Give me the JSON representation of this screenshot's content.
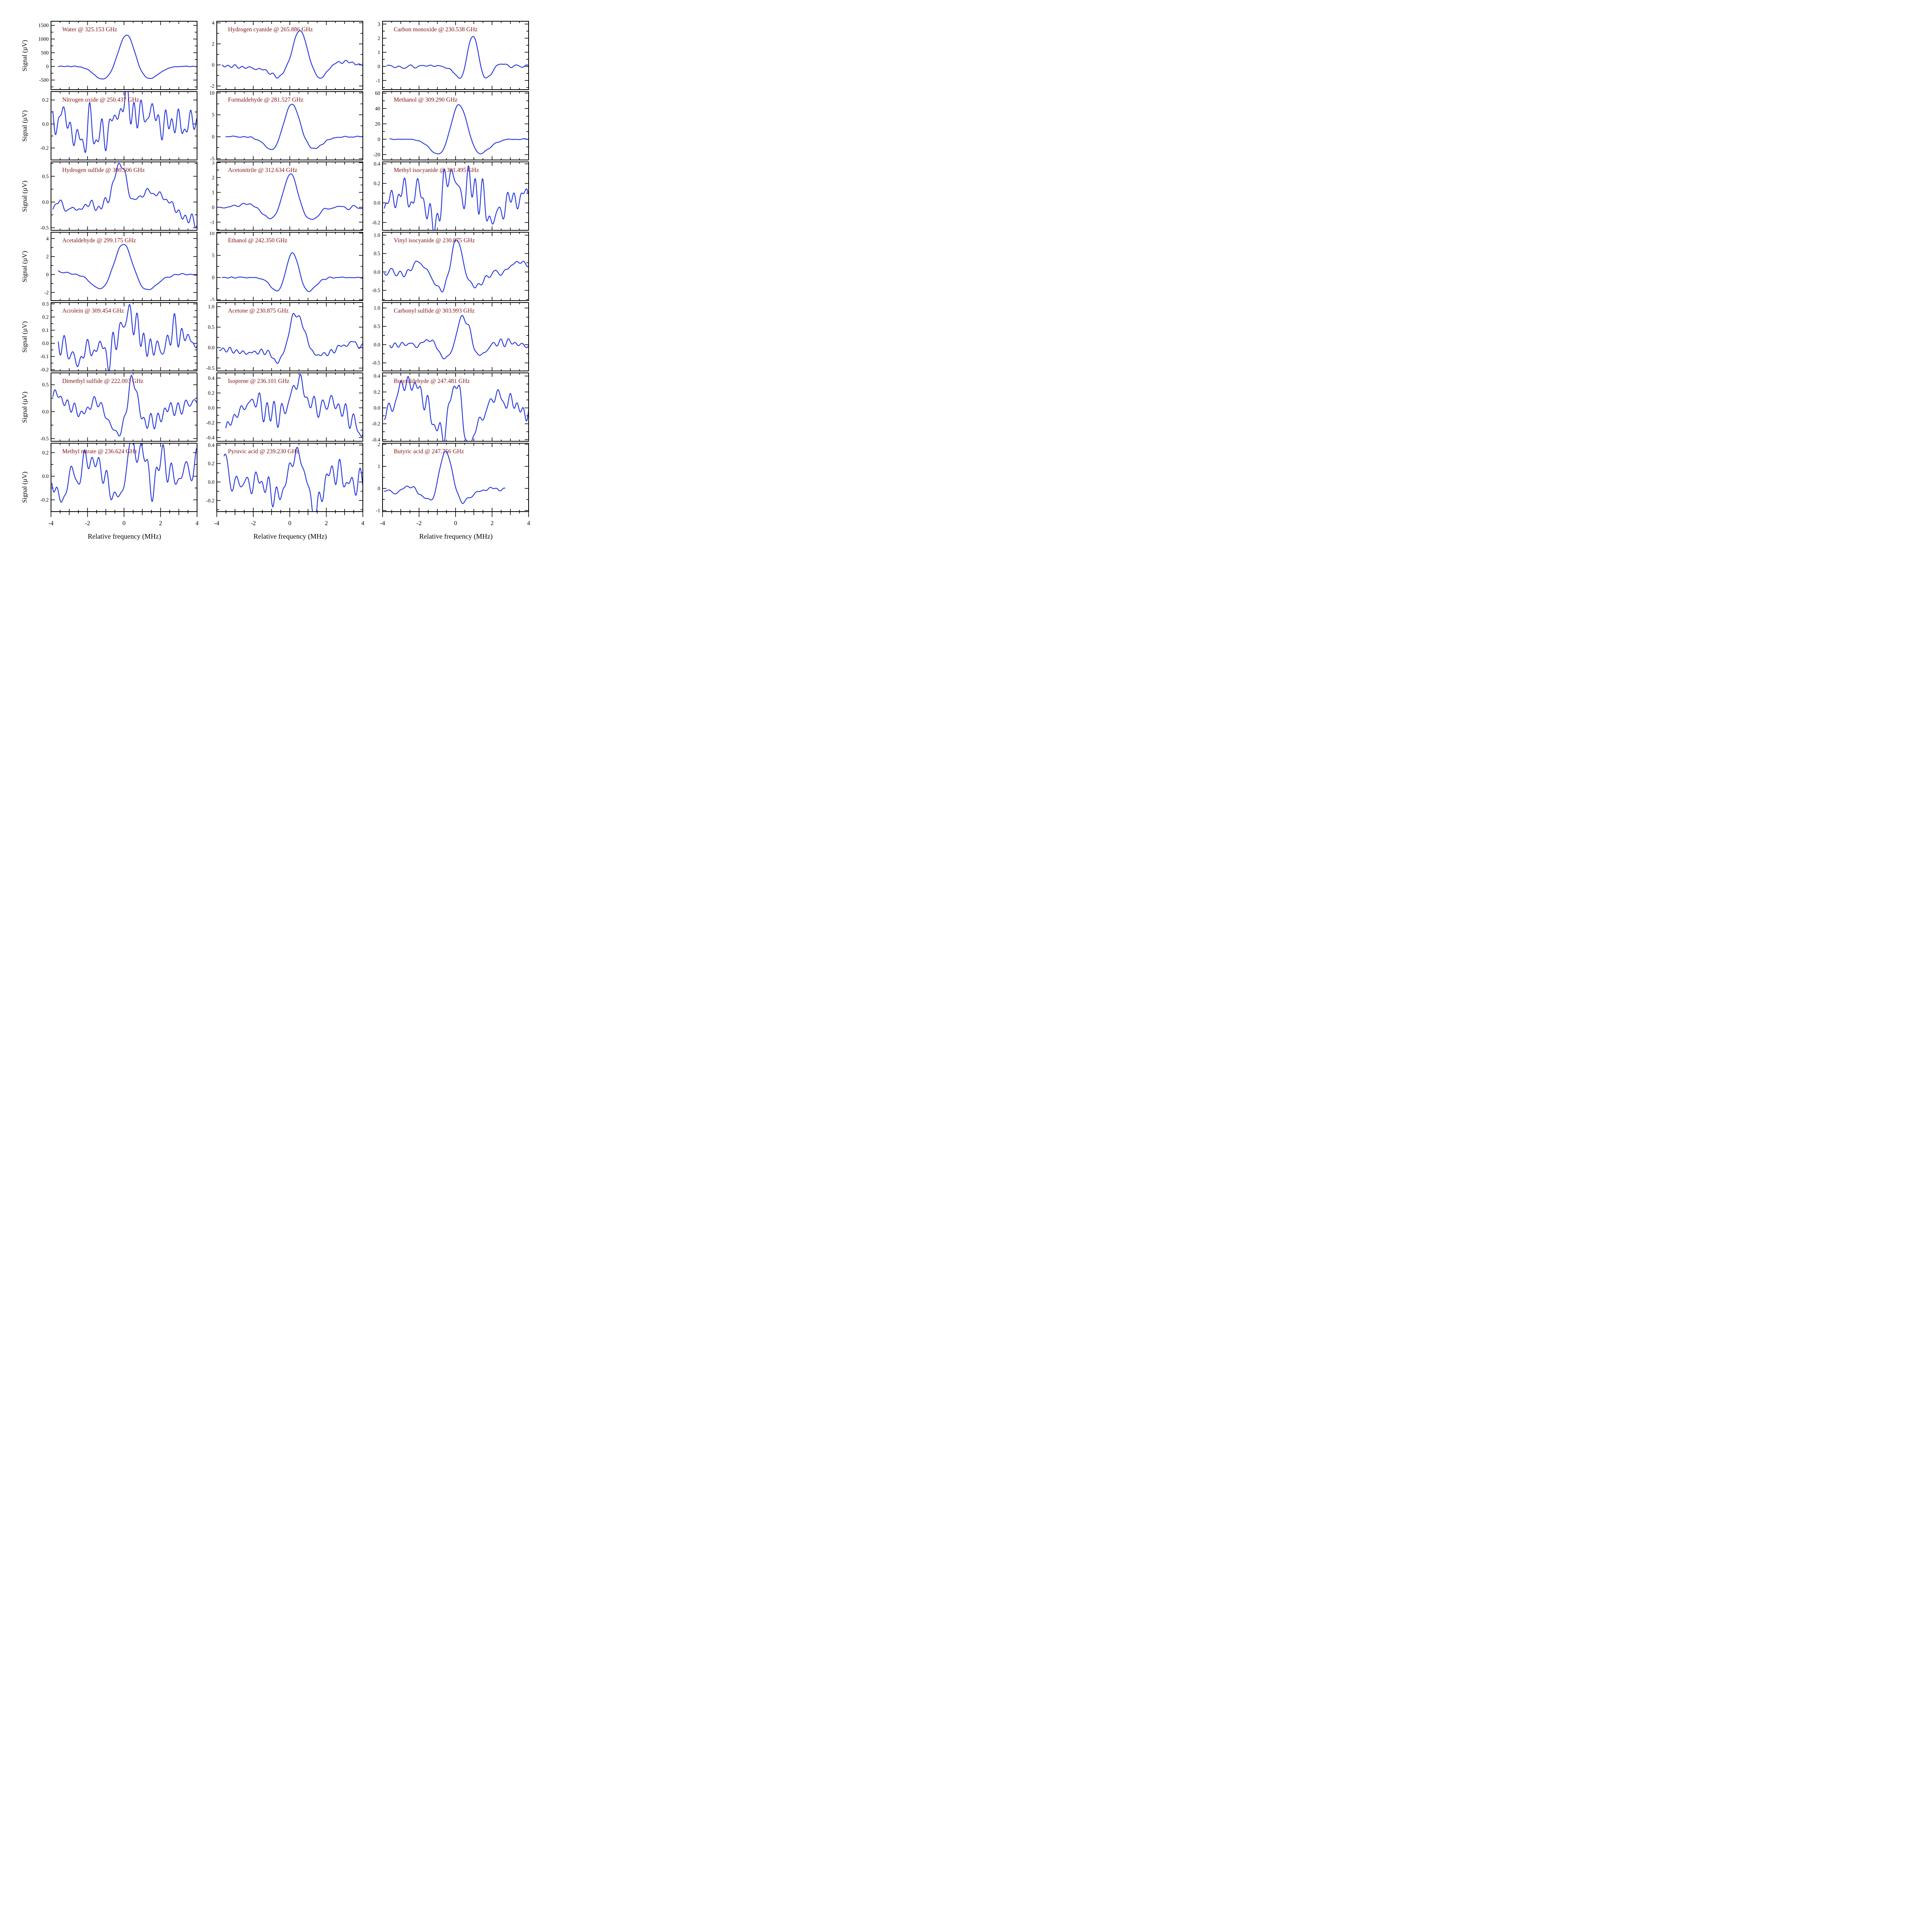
{
  "figure": {
    "xlabel": "Relative frequency (MHz)",
    "ylabel": "Signal (µV)",
    "xticks": [
      -4,
      -2,
      0,
      2,
      4
    ],
    "x_range": [
      -4,
      4
    ],
    "grid": "off",
    "legend": "none",
    "colors": {
      "trace": "#2233dd",
      "title": "#801111",
      "frame": "#000000",
      "background": "#ffffff"
    }
  },
  "chart_data": [
    {
      "type": "line",
      "molecule": "Water",
      "frequency_ghz": "325.153",
      "title": "Water @ 325.153 GHz",
      "ylim": [
        -850,
        1650
      ],
      "yticks": [
        1500,
        1000,
        500,
        0,
        -500
      ],
      "ytick_decimals": 0,
      "peak_value": 1210,
      "lobe_value": -475,
      "components": [
        [
          0.15,
          0.42,
          1210
        ],
        [
          -1.15,
          0.5,
          -475
        ],
        [
          1.35,
          0.55,
          -460
        ]
      ],
      "noise_rms": 6,
      "x_span": [
        -3.6,
        4.0
      ],
      "seed": 101
    },
    {
      "type": "line",
      "molecule": "Hydrogen cyanide",
      "frequency_ghz": "265.886",
      "title": "Hydrogen cyanide @ 265.886 GHz",
      "ylim": [
        -2.35,
        4.15
      ],
      "yticks": [
        4,
        2,
        0,
        -2
      ],
      "ytick_decimals": 0,
      "peak_value": 3.4,
      "lobe_value": -1.4,
      "components": [
        [
          0.55,
          0.42,
          3.45
        ],
        [
          -0.5,
          0.5,
          -1.05
        ],
        [
          1.55,
          0.42,
          -1.4
        ],
        [
          2.9,
          0.45,
          0.35
        ],
        [
          -1.8,
          1.1,
          -0.3
        ]
      ],
      "noise_rms": 0.07,
      "x_span": [
        -3.7,
        4.0
      ],
      "seed": 102
    },
    {
      "type": "line",
      "molecule": "Carbon monoxide",
      "frequency_ghz": "230.538",
      "title": "Carbon monoxide @ 230.538 GHz",
      "ylim": [
        -1.65,
        3.2
      ],
      "yticks": [
        3,
        2,
        1,
        0,
        -1
      ],
      "ytick_decimals": 0,
      "peak_value": 2.3,
      "lobe_value": -1.0,
      "components": [
        [
          0.95,
          0.3,
          2.35
        ],
        [
          0.3,
          0.3,
          -1.0
        ],
        [
          1.62,
          0.33,
          -1.05
        ],
        [
          2.3,
          0.3,
          0.28
        ]
      ],
      "noise_rms": 0.055,
      "x_span": [
        -3.75,
        4.0
      ],
      "seed": 103
    },
    {
      "type": "line",
      "molecule": "Nitrogen oxide",
      "frequency_ghz": "250.437",
      "title": "Nitrogen oxide @ 250.437 GHz",
      "ylim": [
        -0.3,
        0.27
      ],
      "yticks": [
        0.2,
        0.0,
        -0.2
      ],
      "ytick_decimals": 1,
      "peak_value": 0.23,
      "lobe_value": -0.17,
      "components": [
        [
          0.02,
          0.22,
          0.23
        ],
        [
          -3.3,
          0.2,
          0.15
        ],
        [
          -2.6,
          0.45,
          -0.13
        ],
        [
          1.1,
          0.5,
          0.1
        ],
        [
          -1.3,
          0.3,
          -0.1
        ]
      ],
      "noise_rms": 0.075,
      "x_span": [
        -3.9,
        4.05
      ],
      "seed": 104
    },
    {
      "type": "line",
      "molecule": "Formaldehyde",
      "frequency_ghz": "281.527",
      "title": "Formaldehyde @ 281.527 GHz",
      "ylim": [
        -5.3,
        10.3
      ],
      "yticks": [
        10,
        5,
        0,
        -5
      ],
      "ytick_decimals": 0,
      "peak_value": 8.4,
      "lobe_value": -3.5,
      "components": [
        [
          0.1,
          0.45,
          8.4
        ],
        [
          -0.85,
          0.5,
          -3.5
        ],
        [
          1.2,
          0.55,
          -3.0
        ]
      ],
      "noise_rms": 0.09,
      "x_span": [
        -3.5,
        4.0
      ],
      "seed": 105
    },
    {
      "type": "line",
      "molecule": "Methanol",
      "frequency_ghz": "309.290",
      "title": "Methanol @ 309.290 GHz",
      "ylim": [
        -27,
        62
      ],
      "yticks": [
        60,
        40,
        20,
        0,
        -20
      ],
      "ytick_decimals": 0,
      "peak_value": 54,
      "lobe_value": -22,
      "components": [
        [
          0.2,
          0.45,
          54
        ],
        [
          -0.82,
          0.55,
          -22
        ],
        [
          1.2,
          0.6,
          -21
        ]
      ],
      "noise_rms": 0.35,
      "x_span": [
        -3.6,
        4.0
      ],
      "seed": 106
    },
    {
      "type": "line",
      "molecule": "Hydrogen sulfide",
      "frequency_ghz": "300.506",
      "title": "Hydrogen sulfide @ 300.506 GHz",
      "ylim": [
        -0.55,
        0.78
      ],
      "yticks": [
        0.5,
        0.0,
        -0.5
      ],
      "ytick_decimals": 1,
      "peak_value": 0.65,
      "lobe_value": -0.3,
      "components": [
        [
          -0.3,
          0.33,
          0.62
        ],
        [
          0.0,
          0.2,
          0.28
        ],
        [
          1.35,
          0.55,
          0.2
        ],
        [
          4.3,
          0.8,
          -0.5
        ],
        [
          -2.5,
          2.0,
          -0.1
        ]
      ],
      "noise_rms": 0.055,
      "x_span": [
        -3.9,
        4.05
      ],
      "seed": 107
    },
    {
      "type": "line",
      "molecule": "Acetonitrile",
      "frequency_ghz": "312.634",
      "title": "Acetonitrile @ 312.634 GHz",
      "ylim": [
        -1.55,
        3.05
      ],
      "yticks": [
        3,
        2,
        1,
        0,
        -1
      ],
      "ytick_decimals": 0,
      "peak_value": 2.45,
      "lobe_value": -0.9,
      "components": [
        [
          0.05,
          0.4,
          2.45
        ],
        [
          -1.0,
          0.5,
          -0.85
        ],
        [
          1.05,
          0.5,
          -0.9
        ],
        [
          -2.3,
          0.55,
          0.25
        ]
      ],
      "noise_rms": 0.05,
      "x_span": [
        -3.9,
        4.0
      ],
      "seed": 108
    },
    {
      "type": "line",
      "molecule": "Methyl isocyanide",
      "frequency_ghz": "301.495",
      "title": "Methyl isocyanide @ 301.495 GHz",
      "ylim": [
        -0.28,
        0.42
      ],
      "yticks": [
        0.4,
        0.2,
        0.0,
        -0.2
      ],
      "ytick_decimals": 1,
      "peak_value": 0.28,
      "lobe_value": -0.22,
      "components": [
        [
          -0.3,
          0.3,
          0.32
        ],
        [
          -1.2,
          0.35,
          -0.2
        ],
        [
          0.9,
          0.35,
          0.22
        ],
        [
          -2.9,
          0.25,
          0.13
        ],
        [
          1.9,
          0.4,
          -0.15
        ],
        [
          3.9,
          0.3,
          0.12
        ],
        [
          -1.9,
          0.5,
          0.08
        ]
      ],
      "noise_rms": 0.075,
      "x_span": [
        -3.9,
        4.05
      ],
      "seed": 109
    },
    {
      "type": "line",
      "molecule": "Acetaldehyde",
      "frequency_ghz": "299.175",
      "title": "Acetaldehyde @ 299.175 GHz",
      "ylim": [
        -2.9,
        4.7
      ],
      "yticks": [
        4,
        2,
        0,
        -2
      ],
      "ytick_decimals": 0,
      "peak_value": 3.8,
      "lobe_value": -1.8,
      "components": [
        [
          -0.05,
          0.48,
          3.8
        ],
        [
          -1.2,
          0.55,
          -1.75
        ],
        [
          1.2,
          0.6,
          -1.8
        ],
        [
          -3.9,
          0.8,
          0.3
        ]
      ],
      "noise_rms": 0.05,
      "x_span": [
        -3.6,
        4.0
      ],
      "seed": 110
    },
    {
      "type": "line",
      "molecule": "Ethanol",
      "frequency_ghz": "242.350",
      "title": "Ethanol @ 242.350 GHz",
      "ylim": [
        -5.2,
        10.2
      ],
      "yticks": [
        10,
        5,
        0,
        -5
      ],
      "ytick_decimals": 0,
      "peak_value": 7.0,
      "lobe_value": -3.5,
      "components": [
        [
          0.15,
          0.35,
          7.1
        ],
        [
          -0.6,
          0.42,
          -3.5
        ],
        [
          0.92,
          0.45,
          -3.5
        ]
      ],
      "noise_rms": 0.07,
      "x_span": [
        -3.7,
        4.0
      ],
      "seed": 111
    },
    {
      "type": "line",
      "molecule": "Vinyl isocyanide",
      "frequency_ghz": "230.875",
      "title": "Vinyl isocyanide @ 230.875 GHz",
      "ylim": [
        -0.78,
        1.08
      ],
      "yticks": [
        1.0,
        0.5,
        0.0,
        -0.5
      ],
      "ytick_decimals": 1,
      "peak_value": 0.9,
      "lobe_value": -0.5,
      "components": [
        [
          0.05,
          0.3,
          0.93
        ],
        [
          -0.75,
          0.4,
          -0.5
        ],
        [
          1.15,
          0.5,
          -0.37
        ],
        [
          -2.1,
          0.5,
          0.2
        ],
        [
          3.9,
          0.8,
          0.25
        ],
        [
          -3.2,
          0.5,
          -0.08
        ]
      ],
      "noise_rms": 0.05,
      "x_span": [
        -3.9,
        4.05
      ],
      "seed": 112
    },
    {
      "type": "line",
      "molecule": "Acrolein",
      "frequency_ghz": "309.454",
      "title": "Acrolein @ 309.454 GHz",
      "ylim": [
        -0.21,
        0.31
      ],
      "yticks": [
        0.3,
        0.2,
        0.1,
        0.0,
        -0.1,
        -0.2
      ],
      "ytick_decimals": 1,
      "peak_value": 0.22,
      "lobe_value": -0.15,
      "components": [
        [
          0.25,
          0.4,
          0.22
        ],
        [
          -2.55,
          0.4,
          -0.13
        ],
        [
          2.9,
          0.35,
          0.1
        ],
        [
          -0.9,
          0.4,
          -0.08
        ],
        [
          1.8,
          0.4,
          -0.05
        ]
      ],
      "noise_rms": 0.05,
      "x_span": [
        -3.6,
        4.05
      ],
      "seed": 113
    },
    {
      "type": "line",
      "molecule": "Acetone",
      "frequency_ghz": "230.875",
      "title": "Acetone @ 230.875 GHz",
      "ylim": [
        -0.57,
        1.1
      ],
      "yticks": [
        1.0,
        0.5,
        0.0,
        -0.5
      ],
      "ytick_decimals": 1,
      "peak_value": 0.85,
      "lobe_value": -0.37,
      "components": [
        [
          0.38,
          0.42,
          0.88
        ],
        [
          -0.55,
          0.3,
          -0.33
        ],
        [
          1.6,
          0.7,
          -0.2
        ],
        [
          -2.0,
          1.3,
          -0.12
        ],
        [
          3.2,
          0.5,
          0.12
        ]
      ],
      "noise_rms": 0.045,
      "x_span": [
        -3.85,
        4.05
      ],
      "seed": 114
    },
    {
      "type": "line",
      "molecule": "Carbonyl sulfide",
      "frequency_ghz": "303.993",
      "title": "Carbonyl sulfide @ 303.993 GHz",
      "ylim": [
        -0.72,
        1.15
      ],
      "yticks": [
        1.0,
        0.5,
        0.0,
        -0.5
      ],
      "ytick_decimals": 1,
      "peak_value": 0.92,
      "lobe_value": -0.45,
      "components": [
        [
          0.42,
          0.38,
          0.92
        ],
        [
          -0.42,
          0.4,
          -0.45
        ],
        [
          1.15,
          0.45,
          -0.35
        ],
        [
          -1.35,
          0.3,
          0.14
        ],
        [
          2.6,
          0.4,
          0.08
        ]
      ],
      "noise_rms": 0.05,
      "x_span": [
        -3.6,
        4.05
      ],
      "seed": 115
    },
    {
      "type": "line",
      "molecule": "Dimethyl sulfide",
      "frequency_ghz": "222.003",
      "title": "Dimethyl sulfide @ 222.003 GHz",
      "ylim": [
        -0.55,
        0.72
      ],
      "yticks": [
        0.5,
        0.0,
        -0.5
      ],
      "ytick_decimals": 1,
      "peak_value": 0.57,
      "lobe_value": -0.42,
      "components": [
        [
          0.45,
          0.27,
          0.62
        ],
        [
          -0.3,
          0.4,
          -0.42
        ],
        [
          -3.9,
          0.5,
          0.3
        ],
        [
          -1.55,
          0.35,
          0.18
        ],
        [
          1.3,
          0.6,
          -0.15
        ],
        [
          3.9,
          0.6,
          0.18
        ]
      ],
      "noise_rms": 0.08,
      "x_span": [
        -3.9,
        4.05
      ],
      "seed": 116
    },
    {
      "type": "line",
      "molecule": "Isoprene",
      "frequency_ghz": "236.101",
      "title": "Isoprene @ 236.101 GHz",
      "ylim": [
        -0.45,
        0.47
      ],
      "yticks": [
        0.4,
        0.2,
        0.0,
        -0.2,
        -0.4
      ],
      "ytick_decimals": 1,
      "peak_value": 0.38,
      "lobe_value": -0.3,
      "components": [
        [
          0.35,
          0.32,
          0.4
        ],
        [
          -3.8,
          0.5,
          -0.42
        ],
        [
          -0.55,
          0.4,
          -0.15
        ],
        [
          3.95,
          0.45,
          -0.35
        ],
        [
          1.8,
          0.6,
          0.05
        ],
        [
          -2.0,
          0.8,
          0.05
        ]
      ],
      "noise_rms": 0.075,
      "x_span": [
        -3.5,
        4.05
      ],
      "seed": 117
    },
    {
      "type": "line",
      "molecule": "Butyraldehyde",
      "frequency_ghz": "247.481",
      "title": "Butyraldehyde @ 247.481 GHz",
      "ylim": [
        -0.42,
        0.44
      ],
      "yticks": [
        0.4,
        0.2,
        0.0,
        -0.2,
        -0.4
      ],
      "ytick_decimals": 1,
      "peak_value": 0.26,
      "lobe_value": -0.37,
      "components": [
        [
          0.0,
          0.32,
          0.3
        ],
        [
          -0.9,
          0.38,
          -0.33
        ],
        [
          0.85,
          0.42,
          -0.42
        ],
        [
          -2.9,
          0.45,
          0.22
        ],
        [
          -2.1,
          0.4,
          0.24
        ],
        [
          2.3,
          0.45,
          0.15
        ],
        [
          -3.9,
          0.3,
          -0.1
        ]
      ],
      "noise_rms": 0.075,
      "x_span": [
        -3.9,
        4.05
      ],
      "seed": 118
    },
    {
      "type": "line",
      "molecule": "Methyl nitrate",
      "frequency_ghz": "236.624",
      "title": "Methyl nitrate @ 236.624 GHz",
      "ylim": [
        -0.3,
        0.28
      ],
      "yticks": [
        0.2,
        0.0,
        -0.2
      ],
      "ytick_decimals": 1,
      "peak_value": 0.24,
      "lobe_value": -0.23,
      "components": [
        [
          0.55,
          0.5,
          0.26
        ],
        [
          -0.4,
          0.3,
          -0.26
        ],
        [
          -3.45,
          0.3,
          -0.17
        ],
        [
          -1.9,
          0.6,
          0.1
        ],
        [
          2.2,
          0.35,
          0.12
        ],
        [
          1.5,
          0.3,
          -0.1
        ],
        [
          3.9,
          0.3,
          0.1
        ]
      ],
      "noise_rms": 0.075,
      "x_span": [
        -3.95,
        4.05
      ],
      "seed": 119
    },
    {
      "type": "line",
      "molecule": "Pyruvic acid",
      "frequency_ghz": "239.230",
      "title": "Pyruvic acid @ 239.230 GHz",
      "ylim": [
        -0.32,
        0.42
      ],
      "yticks": [
        0.4,
        0.2,
        0.0,
        -0.2
      ],
      "ytick_decimals": 1,
      "peak_value": 0.3,
      "lobe_value": -0.26,
      "components": [
        [
          0.35,
          0.32,
          0.33
        ],
        [
          -0.75,
          0.45,
          -0.2
        ],
        [
          1.45,
          0.4,
          -0.29
        ],
        [
          -3.65,
          0.18,
          0.22
        ],
        [
          2.2,
          0.3,
          0.15
        ],
        [
          0.75,
          0.2,
          0.1
        ],
        [
          -1.6,
          0.5,
          0.05
        ]
      ],
      "noise_rms": 0.065,
      "x_span": [
        -3.6,
        4.05
      ],
      "seed": 120
    },
    {
      "type": "line",
      "molecule": "Butyric acid",
      "frequency_ghz": "247.756",
      "title": "Butyric acid @ 247.756 GHz",
      "ylim": [
        -1.05,
        2.05
      ],
      "yticks": [
        2,
        1,
        0,
        -1
      ],
      "ytick_decimals": 0,
      "peak_value": 1.65,
      "lobe_value": -0.55,
      "components": [
        [
          -0.55,
          0.35,
          1.9
        ],
        [
          -1.35,
          0.38,
          -0.45
        ],
        [
          0.4,
          0.38,
          -0.45
        ],
        [
          -2.5,
          0.35,
          0.27
        ],
        [
          2.2,
          0.8,
          0.18
        ],
        [
          0.0,
          6.0,
          -0.2
        ]
      ],
      "noise_rms": 0.05,
      "x_span": [
        -3.9,
        2.7
      ],
      "seed": 121
    }
  ]
}
